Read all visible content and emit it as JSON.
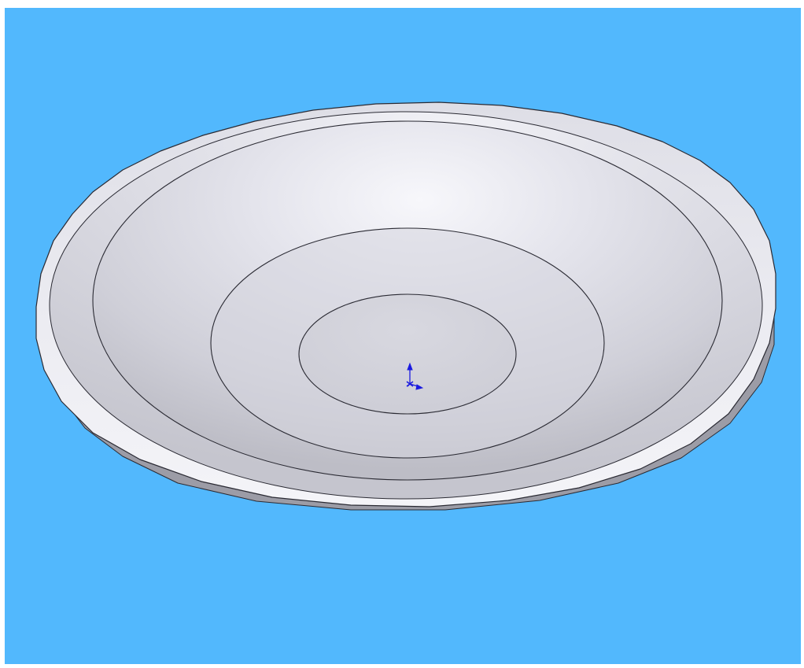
{
  "viewport": {
    "background_color": "#52B8FD",
    "model": "dish-part",
    "part_color": "#E4E4EC",
    "edge_color": "#2A2A33",
    "triad_color": "#1A1AE0"
  }
}
